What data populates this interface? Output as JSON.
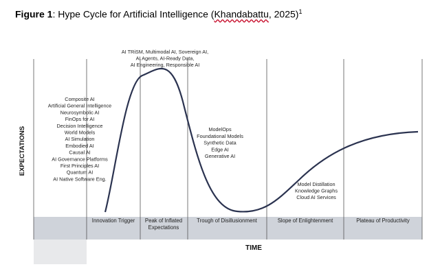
{
  "figure": {
    "label": "Figure 1",
    "title_pre": ": Hype Cycle for Artificial Intelligence (",
    "citation": "Khandabattu",
    "title_post": ", 2025)",
    "footnote": "1"
  },
  "axes": {
    "x_label": "TIME",
    "y_label": "EXPECTATIONS"
  },
  "phases": [
    {
      "label": [
        "Innovation Trigger"
      ]
    },
    {
      "label": [
        "Peak of Inflated",
        "Expectations"
      ]
    },
    {
      "label": [
        "Trough of Disillusionment"
      ]
    },
    {
      "label": [
        "Slope of Enlightenment"
      ]
    },
    {
      "label": [
        "Plateau of Productivity"
      ]
    }
  ],
  "groups": [
    {
      "phase": "Innovation Trigger",
      "items": [
        "Composite AI",
        "Artificial General Intelligence",
        "Neurosymbolic AI",
        "FinOps for AI",
        "Decision Intelligence",
        "World Models",
        "AI Simulation",
        "Embodied AI",
        "Causal AI",
        "AI Governance Platforms",
        "First Principles AI",
        "Quantum AI",
        "AI Native Software Eng."
      ]
    },
    {
      "phase": "Peak of Inflated Expectations",
      "items": [
        "AI TRiSM, Multimodal AI, Sovereign AI,",
        "AI Agents, AI-Ready Data,",
        "AI Engineering, Responsible AI"
      ]
    },
    {
      "phase": "Trough of Disillusionment",
      "items": [
        "ModelOps",
        "Foundational Models",
        "Synthetic Data",
        "Edge AI",
        "Generative AI"
      ]
    },
    {
      "phase": "Slope of Enlightenment",
      "items": [
        "Model Distillation",
        "Knowledge Graphs",
        "Cloud AI Services"
      ]
    }
  ],
  "colors": {
    "band": "#cfd3da",
    "curve": "#2b3350",
    "divider": "#555555"
  }
}
